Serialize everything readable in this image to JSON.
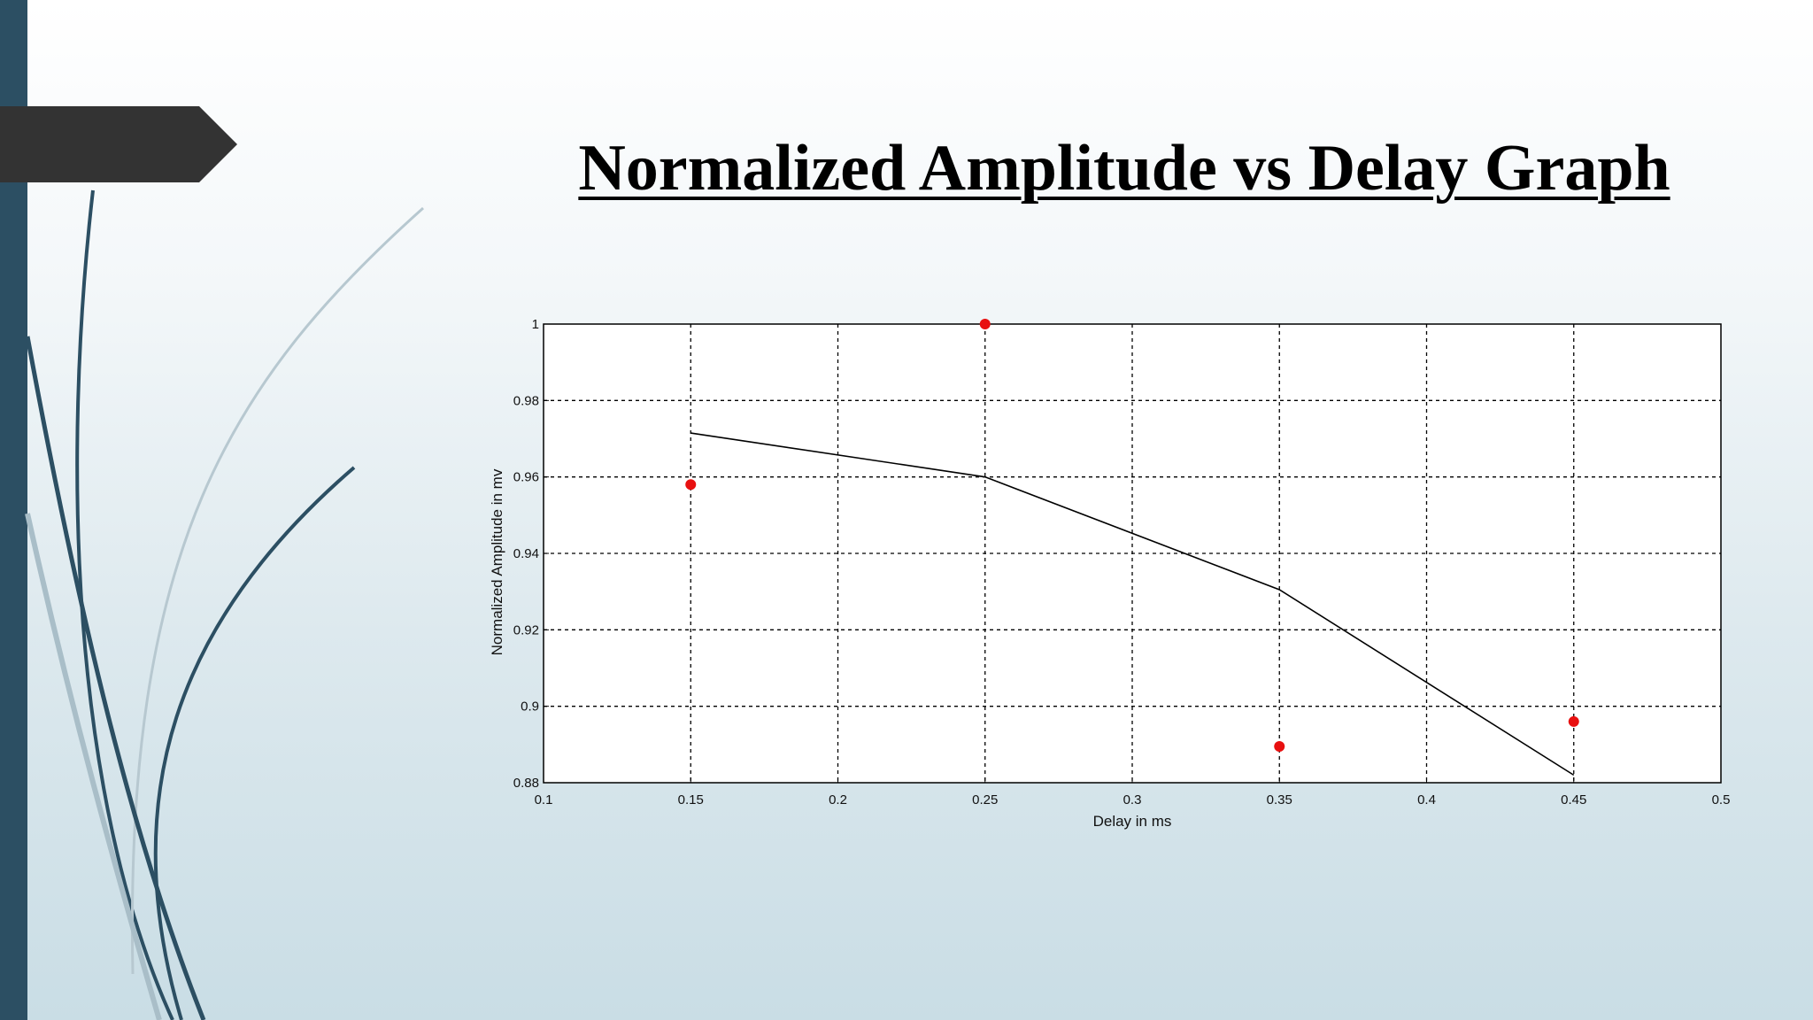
{
  "slide": {
    "title": "Normalized Amplitude vs Delay Graph",
    "accent_color": "#2c4f63",
    "tab_color": "#333333"
  },
  "chart_data": {
    "type": "scatter",
    "title": "",
    "xlabel": "Delay in ms",
    "ylabel": "Normalized Amplitude in mv",
    "xlim": [
      0.1,
      0.5
    ],
    "ylim": [
      0.88,
      1.0
    ],
    "xticks": [
      "0.1",
      "0.15",
      "0.2",
      "0.25",
      "0.3",
      "0.35",
      "0.4",
      "0.45",
      "0.5"
    ],
    "yticks": [
      "0.88",
      "0.9",
      "0.92",
      "0.94",
      "0.96",
      "0.98",
      "1"
    ],
    "grid": true,
    "series": [
      {
        "type": "scatter",
        "color": "#e81010",
        "x": [
          0.15,
          0.25,
          0.35,
          0.45
        ],
        "y": [
          0.958,
          1.0,
          0.8895,
          0.896
        ]
      },
      {
        "type": "line",
        "color": "#000000",
        "x": [
          0.15,
          0.25,
          0.35,
          0.45
        ],
        "y": [
          0.9715,
          0.96,
          0.9305,
          0.882
        ]
      }
    ]
  }
}
